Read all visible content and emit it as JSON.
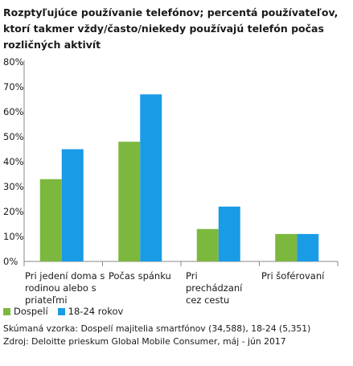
{
  "chart_data": {
    "type": "bar",
    "title": "Rozptyľujúce používanie telefónov; percentá používateľov, ktorí takmer vždy/často/niekedy používajú telefón počas rozličných aktivít",
    "categories": [
      "Pri jedení doma s rodinou alebo s priateľmi",
      "Počas spánku",
      "Pri prechádzaní cez cestu",
      "Pri šoférovaní"
    ],
    "series": [
      {
        "name": "Dospelí",
        "color": "#7cb83e",
        "values": [
          33,
          48,
          13,
          11
        ]
      },
      {
        "name": "18-24 rokov",
        "color": "#1a9be6",
        "values": [
          45,
          67,
          22,
          11
        ]
      }
    ],
    "ylim": [
      0,
      80
    ],
    "yticks": [
      "0%",
      "10%",
      "20%",
      "30%",
      "40%",
      "50%",
      "60%",
      "70%",
      "80%"
    ],
    "grid": false,
    "legend_position": "bottom-left"
  },
  "notes": {
    "sample": "Skúmaná vzorka: Dospelí majitelia smartfónov (34,588), 18-24 (5,351)",
    "source": "Zdroj: Deloitte prieskum Global Mobile Consumer, máj - jún 2017"
  }
}
